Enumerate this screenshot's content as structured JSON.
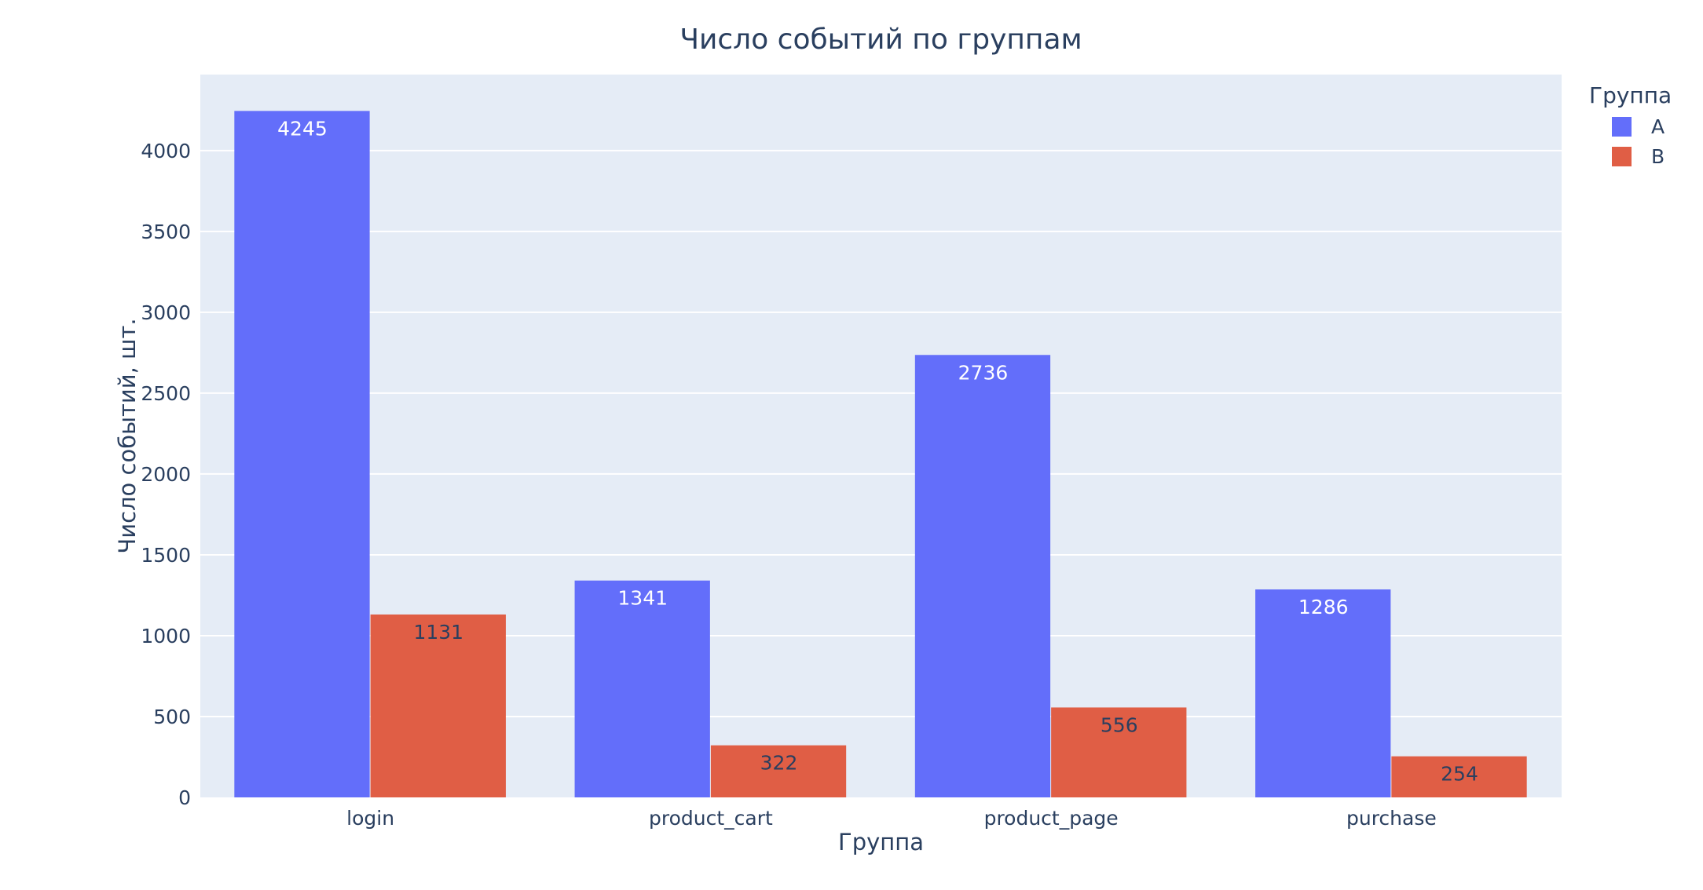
{
  "chart_data": {
    "type": "bar",
    "title": "Число событий по группам",
    "xlabel": "Группа",
    "ylabel": "Число событий, шт.",
    "categories": [
      "login",
      "product_cart",
      "product_page",
      "purchase"
    ],
    "series": [
      {
        "name": "A",
        "values": [
          4245,
          1341,
          2736,
          1286
        ],
        "color": "#636efa",
        "label_color": "#ffffff"
      },
      {
        "name": "B",
        "values": [
          1131,
          322,
          556,
          254
        ],
        "color": "#e05e45",
        "label_color": "#2a3f5f"
      }
    ],
    "ylim": [
      0,
      4470
    ],
    "yticks": [
      0,
      500,
      1000,
      1500,
      2000,
      2500,
      3000,
      3500,
      4000
    ],
    "legend_title": "Группа",
    "legend_position": "top-right",
    "grid": true,
    "plot_background": "#e5ecf6"
  }
}
